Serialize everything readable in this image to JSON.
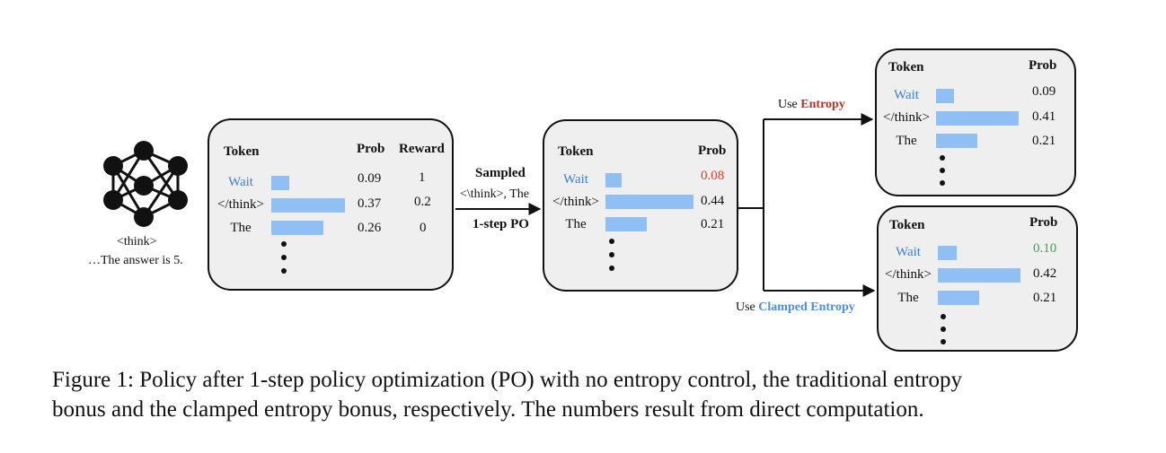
{
  "input_text": {
    "line1": "<think>",
    "line2": "…The answer is 5."
  },
  "arrow_left": {
    "top": "Sampled",
    "middle": "<\\think>, The",
    "bottom": "1-step PO"
  },
  "box1": {
    "headers": {
      "token": "Token",
      "prob": "Prob",
      "reward": "Reward"
    },
    "rows": [
      {
        "token": "Wait",
        "prob": "0.09",
        "reward": "1"
      },
      {
        "token": "</think>",
        "prob": "0.37",
        "reward": "0.2"
      },
      {
        "token": "The",
        "prob": "0.26",
        "reward": "0"
      }
    ]
  },
  "box2": {
    "headers": {
      "token": "Token",
      "prob": "Prob"
    },
    "rows": [
      {
        "token": "Wait",
        "prob": "0.08"
      },
      {
        "token": "</think>",
        "prob": "0.44"
      },
      {
        "token": "The",
        "prob": "0.21"
      }
    ],
    "highlight_color": "#d93a2b"
  },
  "branch_top": {
    "prefix": "Use ",
    "keyword": "Entropy",
    "color": "#b5332a"
  },
  "branch_bottom": {
    "prefix": "Use ",
    "keyword": "Clamped Entropy",
    "color": "#4a8fdc"
  },
  "box3": {
    "headers": {
      "token": "Token",
      "prob": "Prob"
    },
    "rows": [
      {
        "token": "Wait",
        "prob": "0.09"
      },
      {
        "token": "</think>",
        "prob": "0.41"
      },
      {
        "token": "The",
        "prob": "0.21"
      }
    ]
  },
  "box4": {
    "headers": {
      "token": "Token",
      "prob": "Prob"
    },
    "rows": [
      {
        "token": "Wait",
        "prob": "0.10"
      },
      {
        "token": "</think>",
        "prob": "0.42"
      },
      {
        "token": "The",
        "prob": "0.21"
      }
    ],
    "highlight_color": "#3fa34d"
  },
  "caption": {
    "line1": "Figure 1: Policy after 1-step policy optimization (PO) with no entropy control, the traditional entropy",
    "line2": "bonus and the clamped entropy bonus, respectively. The numbers result from direct computation."
  },
  "colors": {
    "bar": "#8fbff3",
    "box_bg": "#efefef",
    "token_blue": "#3f7fd9"
  }
}
